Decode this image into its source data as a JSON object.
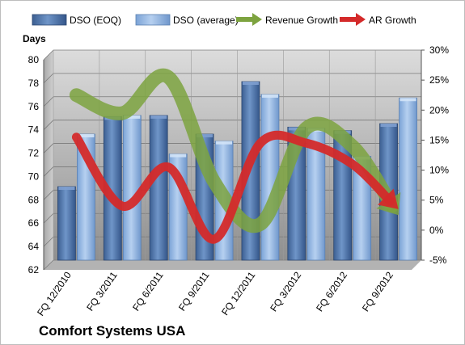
{
  "chart_data": {
    "type": "bar",
    "title": "Comfort Systems USA",
    "ylabel": "Days",
    "ylim": [
      62,
      80
    ],
    "yticks": [
      62,
      64,
      66,
      68,
      70,
      72,
      74,
      76,
      78,
      80
    ],
    "y2lim": [
      -5,
      30
    ],
    "y2ticks": [
      "-5%",
      "0%",
      "5%",
      "10%",
      "15%",
      "20%",
      "25%",
      "30%"
    ],
    "y2tick_values": [
      -5,
      0,
      5,
      10,
      15,
      20,
      25,
      30
    ],
    "grid": true,
    "legend_position": "top",
    "categories": [
      "FQ 12/2010",
      "FQ 3/2011",
      "FQ 6/2011",
      "FQ 9/2011",
      "FQ 12/2011",
      "FQ 3/2012",
      "FQ 6/2012",
      "FQ 9/2012"
    ],
    "series": [
      {
        "name": "DSO (EOQ)",
        "kind": "bar",
        "axis": "left",
        "color": "#4a6fa5",
        "values": [
          68.3,
          74.3,
          74.4,
          72.8,
          77.3,
          73.4,
          73.1,
          73.7
        ]
      },
      {
        "name": "DSO (average)",
        "kind": "bar",
        "axis": "left",
        "color": "#8fb4e3",
        "values": [
          72.8,
          74.4,
          71.1,
          72.2,
          76.2,
          73.3,
          70.9,
          75.9
        ]
      },
      {
        "name": "Revenue Growth",
        "kind": "line",
        "axis": "right",
        "color": "#7da33f",
        "unit": "%",
        "values": [
          22.5,
          19.5,
          25.5,
          8.0,
          1.0,
          17.0,
          14.0,
          2.5
        ]
      },
      {
        "name": "AR Growth",
        "kind": "line",
        "axis": "right",
        "color": "#d42a2a",
        "unit": "%",
        "values": [
          15.5,
          4.0,
          10.5,
          -1.5,
          14.5,
          14.5,
          11.0,
          3.5
        ]
      }
    ]
  }
}
